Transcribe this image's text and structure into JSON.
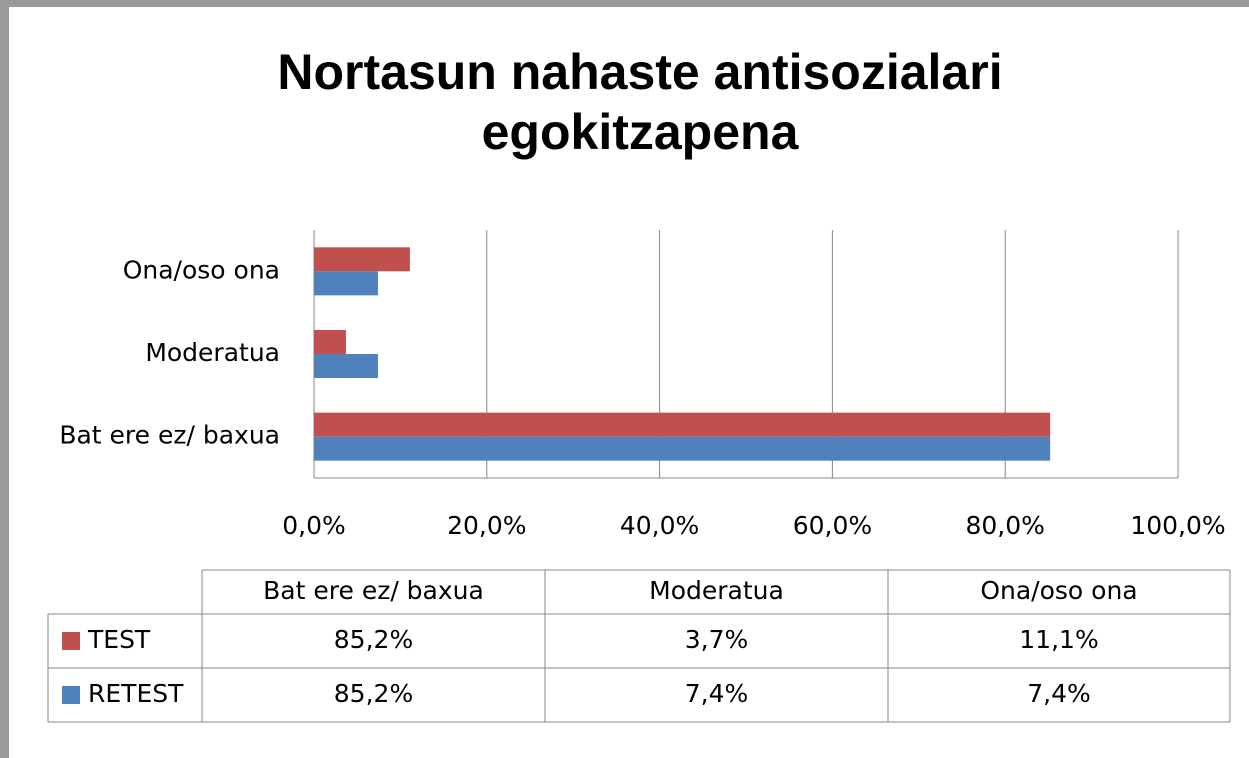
{
  "chart_data": {
    "type": "hbar",
    "title": "Nortasun nahaste antisozialari egokitzapena",
    "categories": [
      "Bat ere ez/ baxua",
      "Moderatua",
      "Ona/oso ona"
    ],
    "series": [
      {
        "name": "TEST",
        "color": "#c0504d",
        "values": [
          85.2,
          3.7,
          11.1
        ],
        "value_labels": [
          "85,2%",
          "3,7%",
          "11,1%"
        ]
      },
      {
        "name": "RETEST",
        "color": "#4f81bd",
        "values": [
          85.2,
          7.4,
          7.4
        ],
        "value_labels": [
          "85,2%",
          "7,4%",
          "7,4%"
        ]
      }
    ],
    "xlim": [
      0,
      100
    ],
    "xticks": [
      {
        "value": 0,
        "label": "0,0%"
      },
      {
        "value": 20,
        "label": "20,0%"
      },
      {
        "value": 40,
        "label": "40,0%"
      },
      {
        "value": 60,
        "label": "60,0%"
      },
      {
        "value": 80,
        "label": "80,0%"
      },
      {
        "value": 100,
        "label": "100,0%"
      }
    ],
    "grid": true,
    "data_table": true
  }
}
